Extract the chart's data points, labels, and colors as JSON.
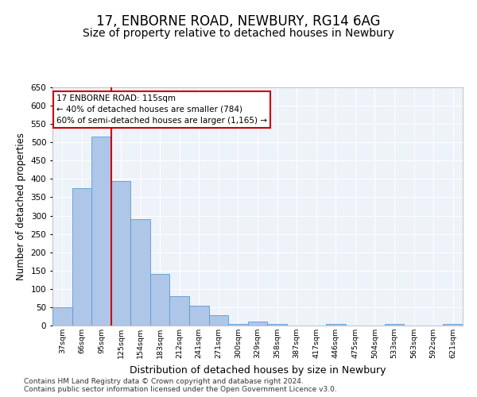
{
  "title1": "17, ENBORNE ROAD, NEWBURY, RG14 6AG",
  "title2": "Size of property relative to detached houses in Newbury",
  "xlabel": "Distribution of detached houses by size in Newbury",
  "ylabel": "Number of detached properties",
  "categories": [
    "37sqm",
    "66sqm",
    "95sqm",
    "125sqm",
    "154sqm",
    "183sqm",
    "212sqm",
    "241sqm",
    "271sqm",
    "300sqm",
    "329sqm",
    "358sqm",
    "387sqm",
    "417sqm",
    "446sqm",
    "475sqm",
    "504sqm",
    "533sqm",
    "563sqm",
    "592sqm",
    "621sqm"
  ],
  "values": [
    50,
    375,
    515,
    395,
    290,
    140,
    80,
    55,
    28,
    5,
    10,
    5,
    0,
    0,
    5,
    0,
    0,
    5,
    0,
    0,
    5
  ],
  "bar_color": "#aec6e8",
  "bar_edge_color": "#5b9bd5",
  "vline_color": "#cc0000",
  "annotation_text": "17 ENBORNE ROAD: 115sqm\n← 40% of detached houses are smaller (784)\n60% of semi-detached houses are larger (1,165) →",
  "annotation_box_color": "#ffffff",
  "annotation_box_edge_color": "#cc0000",
  "ylim": [
    0,
    650
  ],
  "yticks": [
    0,
    50,
    100,
    150,
    200,
    250,
    300,
    350,
    400,
    450,
    500,
    550,
    600,
    650
  ],
  "bg_color": "#eef2f9",
  "footer1": "Contains HM Land Registry data © Crown copyright and database right 2024.",
  "footer2": "Contains public sector information licensed under the Open Government Licence v3.0.",
  "title1_fontsize": 12,
  "title2_fontsize": 10,
  "xlabel_fontsize": 9,
  "ylabel_fontsize": 8.5,
  "footer_fontsize": 6.5,
  "vline_x": 2.5
}
